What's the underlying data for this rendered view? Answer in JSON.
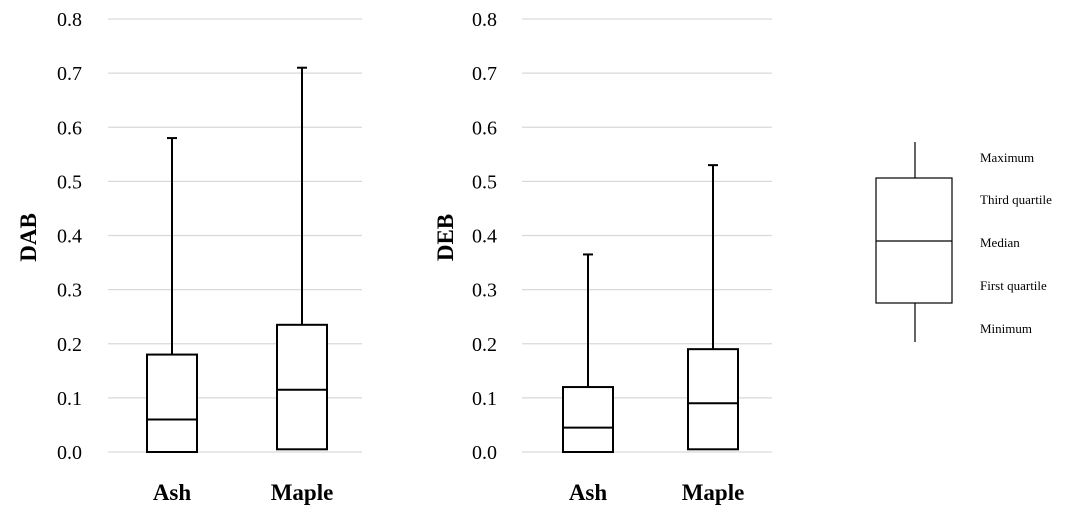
{
  "chart_data": [
    {
      "type": "box",
      "title": "",
      "xlabel": "",
      "ylabel": "DAB",
      "ylim": [
        0,
        0.8
      ],
      "yticks": [
        "0.0",
        "0.1",
        "0.2",
        "0.3",
        "0.4",
        "0.5",
        "0.6",
        "0.7",
        "0.8"
      ],
      "grid": true,
      "categories": [
        "Ash",
        "Maple"
      ],
      "boxes": [
        {
          "category": "Ash",
          "min": 0.0,
          "q1": 0.0,
          "median": 0.06,
          "q3": 0.18,
          "max": 0.58
        },
        {
          "category": "Maple",
          "min": 0.005,
          "q1": 0.005,
          "median": 0.115,
          "q3": 0.235,
          "max": 0.71
        }
      ]
    },
    {
      "type": "box",
      "title": "",
      "xlabel": "",
      "ylabel": "DEB",
      "ylim": [
        0,
        0.8
      ],
      "yticks": [
        "0.0",
        "0.1",
        "0.2",
        "0.3",
        "0.4",
        "0.5",
        "0.6",
        "0.7",
        "0.8"
      ],
      "grid": true,
      "categories": [
        "Ash",
        "Maple"
      ],
      "boxes": [
        {
          "category": "Ash",
          "min": 0.0,
          "q1": 0.0,
          "median": 0.045,
          "q3": 0.12,
          "max": 0.365
        },
        {
          "category": "Maple",
          "min": 0.005,
          "q1": 0.005,
          "median": 0.09,
          "q3": 0.19,
          "max": 0.53
        }
      ]
    }
  ],
  "legend": {
    "labels": [
      "Maximum",
      "Third quartile",
      "Median",
      "First quartile",
      "Minimum"
    ]
  },
  "colors": {
    "grid": "#d9d9d9",
    "box": "#000000"
  }
}
